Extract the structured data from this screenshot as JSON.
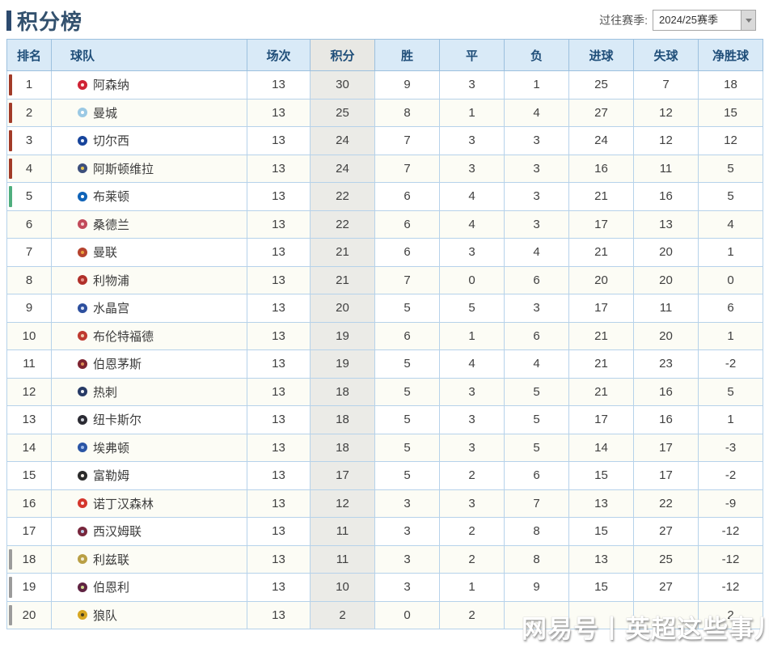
{
  "page": {
    "title": "积分榜",
    "season_label": "过往赛季:",
    "season_value": "2024/25赛季"
  },
  "watermark": "网易号丨英超这些事儿",
  "colors": {
    "accent": "#2c4a6e",
    "header_bg": "#d9eaf7",
    "header_text": "#1f4e79",
    "table_border": "#9cc0de",
    "points_col_bg": "#ebebe7",
    "markers": {
      "red": "#a23b28",
      "green": "#4fae7e",
      "gray": "#9b9b9b"
    }
  },
  "table": {
    "columns": [
      "排名",
      "球队",
      "场次",
      "积分",
      "胜",
      "平",
      "负",
      "进球",
      "失球",
      "净胜球"
    ],
    "rows": [
      {
        "rank": "1",
        "team": "阿森纳",
        "marker": "red",
        "crest": [
          "#cf2335",
          "#fde9e2"
        ],
        "played": "13",
        "points": "30",
        "won": "9",
        "drawn": "3",
        "lost": "1",
        "gf": "25",
        "ga": "7",
        "gd": "18"
      },
      {
        "rank": "2",
        "team": "曼城",
        "marker": "red",
        "crest": [
          "#9bc9e4",
          "#ffffff"
        ],
        "played": "13",
        "points": "25",
        "won": "8",
        "drawn": "1",
        "lost": "4",
        "gf": "27",
        "ga": "12",
        "gd": "15"
      },
      {
        "rank": "3",
        "team": "切尔西",
        "marker": "red",
        "crest": [
          "#17449b",
          "#e8f0fb"
        ],
        "played": "13",
        "points": "24",
        "won": "7",
        "drawn": "3",
        "lost": "3",
        "gf": "24",
        "ga": "12",
        "gd": "12"
      },
      {
        "rank": "4",
        "team": "阿斯顿维拉",
        "marker": "red",
        "crest": [
          "#3d4f7c",
          "#e7c64f"
        ],
        "played": "13",
        "points": "24",
        "won": "7",
        "drawn": "3",
        "lost": "3",
        "gf": "16",
        "ga": "11",
        "gd": "5"
      },
      {
        "rank": "5",
        "team": "布莱顿",
        "marker": "green",
        "crest": [
          "#0f63b8",
          "#ffffff"
        ],
        "played": "13",
        "points": "22",
        "won": "6",
        "drawn": "4",
        "lost": "3",
        "gf": "21",
        "ga": "16",
        "gd": "5"
      },
      {
        "rank": "6",
        "team": "桑德兰",
        "marker": "",
        "crest": [
          "#c24a5a",
          "#f3d0cf"
        ],
        "played": "13",
        "points": "22",
        "won": "6",
        "drawn": "4",
        "lost": "3",
        "gf": "17",
        "ga": "13",
        "gd": "4"
      },
      {
        "rank": "7",
        "team": "曼联",
        "marker": "",
        "crest": [
          "#b5432e",
          "#e8a33d"
        ],
        "played": "13",
        "points": "21",
        "won": "6",
        "drawn": "3",
        "lost": "4",
        "gf": "21",
        "ga": "20",
        "gd": "1"
      },
      {
        "rank": "8",
        "team": "利物浦",
        "marker": "",
        "crest": [
          "#b0302a",
          "#e6948c"
        ],
        "played": "13",
        "points": "21",
        "won": "7",
        "drawn": "0",
        "lost": "6",
        "gf": "20",
        "ga": "20",
        "gd": "0"
      },
      {
        "rank": "9",
        "team": "水晶宫",
        "marker": "",
        "crest": [
          "#2d4f9e",
          "#d6dff2"
        ],
        "played": "13",
        "points": "20",
        "won": "5",
        "drawn": "5",
        "lost": "3",
        "gf": "17",
        "ga": "11",
        "gd": "6"
      },
      {
        "rank": "10",
        "team": "布伦特福德",
        "marker": "",
        "crest": [
          "#bf3a30",
          "#f0cdae"
        ],
        "played": "13",
        "points": "19",
        "won": "6",
        "drawn": "1",
        "lost": "6",
        "gf": "21",
        "ga": "20",
        "gd": "1"
      },
      {
        "rank": "11",
        "team": "伯恩茅斯",
        "marker": "",
        "crest": [
          "#7e2330",
          "#d98f55"
        ],
        "played": "13",
        "points": "19",
        "won": "5",
        "drawn": "4",
        "lost": "4",
        "gf": "21",
        "ga": "23",
        "gd": "-2"
      },
      {
        "rank": "12",
        "team": "热刺",
        "marker": "",
        "crest": [
          "#273a66",
          "#eef0f5"
        ],
        "played": "13",
        "points": "18",
        "won": "5",
        "drawn": "3",
        "lost": "5",
        "gf": "21",
        "ga": "16",
        "gd": "5"
      },
      {
        "rank": "13",
        "team": "纽卡斯尔",
        "marker": "",
        "crest": [
          "#2b2b33",
          "#cfd3dc"
        ],
        "played": "13",
        "points": "18",
        "won": "5",
        "drawn": "3",
        "lost": "5",
        "gf": "17",
        "ga": "16",
        "gd": "1"
      },
      {
        "rank": "14",
        "team": "埃弗顿",
        "marker": "",
        "crest": [
          "#2a55a5",
          "#9db9e8"
        ],
        "played": "13",
        "points": "18",
        "won": "5",
        "drawn": "3",
        "lost": "5",
        "gf": "14",
        "ga": "17",
        "gd": "-3"
      },
      {
        "rank": "15",
        "team": "富勒姆",
        "marker": "",
        "crest": [
          "#2b2b2b",
          "#f5f0ea"
        ],
        "played": "13",
        "points": "17",
        "won": "5",
        "drawn": "2",
        "lost": "6",
        "gf": "15",
        "ga": "17",
        "gd": "-2"
      },
      {
        "rank": "16",
        "team": "诺丁汉森林",
        "marker": "",
        "crest": [
          "#d4362c",
          "#fbeae8"
        ],
        "played": "13",
        "points": "12",
        "won": "3",
        "drawn": "3",
        "lost": "7",
        "gf": "13",
        "ga": "22",
        "gd": "-9"
      },
      {
        "rank": "17",
        "team": "西汉姆联",
        "marker": "",
        "crest": [
          "#77263c",
          "#b9cfe8"
        ],
        "played": "13",
        "points": "11",
        "won": "3",
        "drawn": "2",
        "lost": "8",
        "gf": "15",
        "ga": "27",
        "gd": "-12"
      },
      {
        "rank": "18",
        "team": "利兹联",
        "marker": "gray",
        "crest": [
          "#b99f45",
          "#f3ecd2"
        ],
        "played": "13",
        "points": "11",
        "won": "3",
        "drawn": "2",
        "lost": "8",
        "gf": "13",
        "ga": "25",
        "gd": "-12"
      },
      {
        "rank": "19",
        "team": "伯恩利",
        "marker": "gray",
        "crest": [
          "#5f2342",
          "#cdd98e"
        ],
        "played": "13",
        "points": "10",
        "won": "3",
        "drawn": "1",
        "lost": "9",
        "gf": "15",
        "ga": "27",
        "gd": "-12"
      },
      {
        "rank": "20",
        "team": "狼队",
        "marker": "gray",
        "crest": [
          "#d7a722",
          "#4a401f"
        ],
        "played": "13",
        "points": "2",
        "won": "0",
        "drawn": "2",
        "lost": "",
        "gf": "",
        "ga": "",
        "gd": "2"
      }
    ]
  }
}
